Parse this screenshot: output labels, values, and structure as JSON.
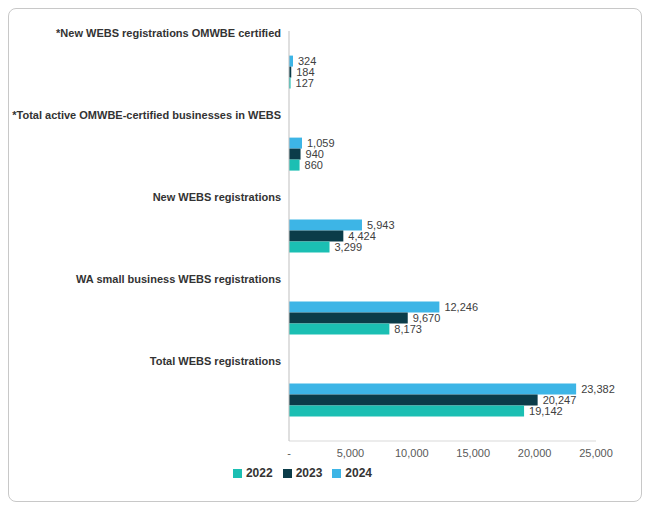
{
  "chart_data": {
    "type": "bar",
    "orientation": "horizontal",
    "categories": [
      "*New WEBS registrations OMWBE certified",
      "*Total active OMWBE-certified businesses in WEBS",
      "New WEBS registrations",
      "WA small business WEBS registrations",
      "Total WEBS registrations"
    ],
    "series": [
      {
        "name": "2024",
        "color": "#3db5e6",
        "values": [
          324,
          1059,
          5943,
          12246,
          23382
        ],
        "value_labels": [
          "324",
          "1,059",
          "5,943",
          "12,246",
          "23,382"
        ]
      },
      {
        "name": "2023",
        "color": "#0b3c49",
        "values": [
          184,
          940,
          4424,
          9670,
          20247
        ],
        "value_labels": [
          "184",
          "940",
          "4,424",
          "9,670",
          "20,247"
        ]
      },
      {
        "name": "2022",
        "color": "#1bbfb3",
        "values": [
          127,
          860,
          3299,
          8173,
          19142
        ],
        "value_labels": [
          "127",
          "860",
          "3,299",
          "8,173",
          "19,142"
        ]
      }
    ],
    "xlim": [
      0,
      25000
    ],
    "xticks": [
      {
        "value": 0,
        "label": "-"
      },
      {
        "value": 5000,
        "label": "5,000"
      },
      {
        "value": 10000,
        "label": "10,000"
      },
      {
        "value": 15000,
        "label": "15,000"
      },
      {
        "value": 20000,
        "label": "20,000"
      },
      {
        "value": 25000,
        "label": "25,000"
      }
    ],
    "grid": false,
    "legend": "bottom",
    "data_labels": true
  }
}
